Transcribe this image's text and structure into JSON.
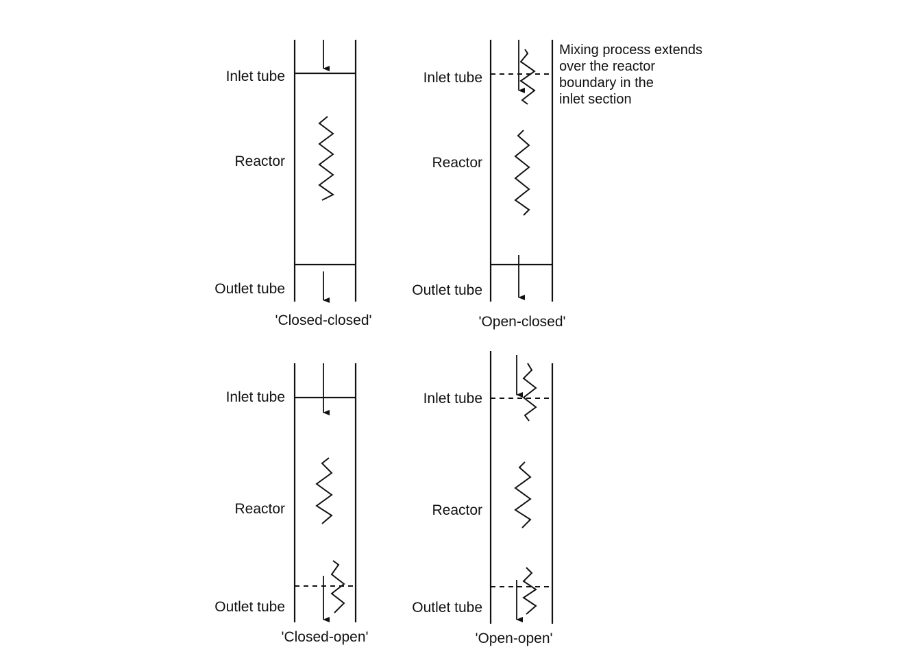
{
  "labels": {
    "inlet": "Inlet tube",
    "reactor": "Reactor",
    "outlet": "Outlet tube"
  },
  "panels": [
    {
      "caption": "'Closed-closed'"
    },
    {
      "caption": "'Open-closed'"
    },
    {
      "caption": "'Closed-open'"
    },
    {
      "caption": "'Open-open'"
    }
  ],
  "annotation": [
    "Mixing process extends",
    "over the reactor",
    "boundary in the",
    "inlet section"
  ]
}
